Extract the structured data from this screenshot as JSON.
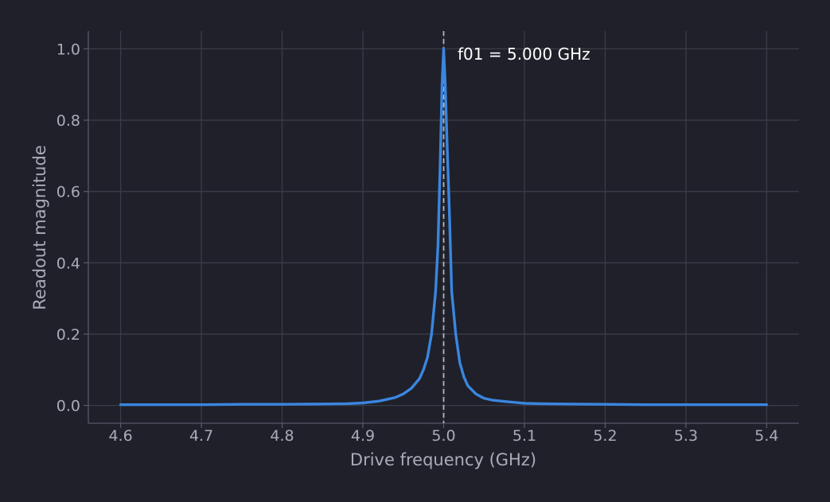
{
  "chart_data": {
    "type": "line",
    "title": "",
    "xlabel": "Drive frequency (GHz)",
    "ylabel": "Readout magnitude",
    "xlim": [
      4.56,
      5.44
    ],
    "ylim": [
      -0.05,
      1.05
    ],
    "xticks": [
      4.6,
      4.7,
      4.8,
      4.9,
      5.0,
      5.1,
      5.2,
      5.3,
      5.4
    ],
    "xtick_labels": [
      "4.6",
      "4.7",
      "4.8",
      "4.9",
      "5.0",
      "5.1",
      "5.2",
      "5.3",
      "5.4"
    ],
    "yticks": [
      0.0,
      0.2,
      0.4,
      0.6,
      0.8,
      1.0
    ],
    "ytick_labels": [
      "0.0",
      "0.2",
      "0.4",
      "0.6",
      "0.8",
      "1.0"
    ],
    "grid": true,
    "series": [
      {
        "color": "#3a86e0",
        "x": [
          4.6,
          4.65,
          4.7,
          4.75,
          4.8,
          4.85,
          4.88,
          4.9,
          4.92,
          4.94,
          4.95,
          4.96,
          4.97,
          4.975,
          4.98,
          4.985,
          4.99,
          4.993,
          4.996,
          4.998,
          5.0,
          5.002,
          5.004,
          5.007,
          5.01,
          5.015,
          5.02,
          5.025,
          5.03,
          5.04,
          5.05,
          5.06,
          5.08,
          5.1,
          5.12,
          5.15,
          5.2,
          5.25,
          5.3,
          5.35,
          5.4
        ],
        "y": [
          0.002,
          0.002,
          0.002,
          0.003,
          0.003,
          0.004,
          0.005,
          0.007,
          0.012,
          0.022,
          0.032,
          0.048,
          0.075,
          0.1,
          0.135,
          0.2,
          0.32,
          0.45,
          0.7,
          0.9,
          1.0,
          0.9,
          0.75,
          0.55,
          0.32,
          0.2,
          0.12,
          0.08,
          0.055,
          0.032,
          0.02,
          0.015,
          0.01,
          0.006,
          0.005,
          0.004,
          0.003,
          0.002,
          0.002,
          0.002,
          0.002
        ]
      }
    ],
    "reference_line": {
      "x": 5.0,
      "color": "#b4b6bf",
      "style": "dashed"
    },
    "annotation": {
      "text": "f01 = 5.000 GHz",
      "x": 5.0,
      "y": 1.0
    }
  }
}
